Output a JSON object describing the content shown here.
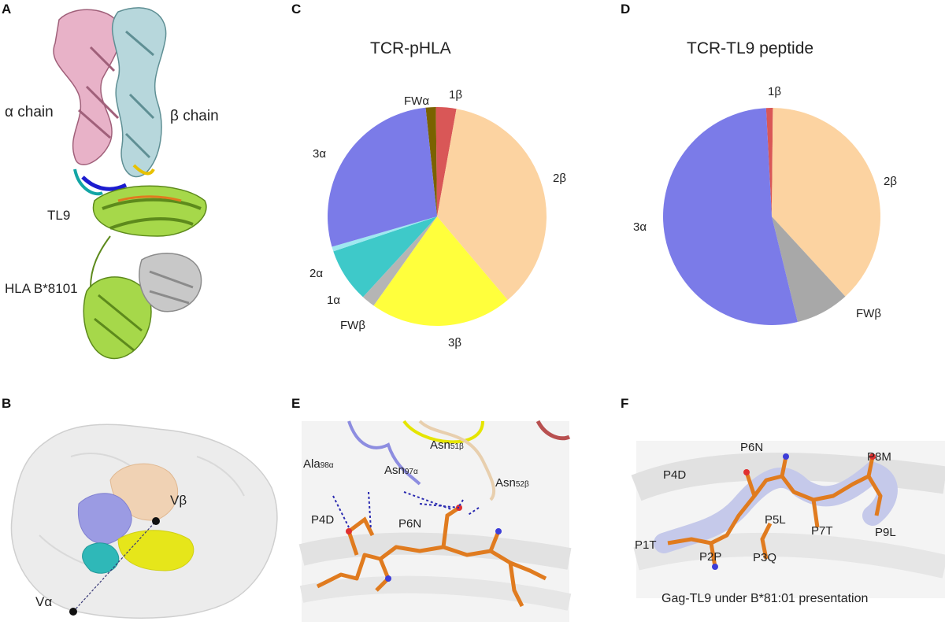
{
  "panels": {
    "a": {
      "letter": "A",
      "alpha_chain": "α chain",
      "beta_chain": "β chain",
      "peptide": "TL9",
      "hla": "HLA B*8101"
    },
    "b": {
      "letter": "B",
      "valpha": "Vα",
      "vbeta": "Vβ"
    },
    "c": {
      "letter": "C"
    },
    "d": {
      "letter": "D"
    },
    "e": {
      "letter": "E",
      "residues": {
        "ala98": "Ala",
        "ala98_sub": "98α",
        "asn97": "Asn",
        "asn97_sub": "97α",
        "asn51": "Asn",
        "asn51_sub": "51β",
        "asn52": "Asn",
        "asn52_sub": "52β",
        "p4d": "P4D",
        "p6n": "P6N"
      }
    },
    "f": {
      "letter": "F",
      "residues": [
        "P1T",
        "P2P",
        "P3Q",
        "P4D",
        "P5L",
        "P6N",
        "P7T",
        "P8M",
        "P9L"
      ],
      "caption": "Gag-TL9 under B*81:01 presentation"
    }
  },
  "colors": {
    "blue": "#7b7be8",
    "peach": "#fcd3a1",
    "yellow": "#ffff3c",
    "teal": "#3ec9c9",
    "gray": "#a8a8a8",
    "red": "#d95757",
    "olive": "#7a6200",
    "orange": "#e07b1f",
    "pink": "#e8b2c8",
    "lightblue": "#b7d7dc",
    "green": "#a6d84a"
  },
  "chart_data": [
    {
      "type": "pie",
      "title": "TCR-pHLA",
      "labels": [
        "FWα",
        "1β",
        "2β",
        "3β",
        "FWβ",
        "1α",
        "2α",
        "3α"
      ],
      "values": [
        1.5,
        3,
        36,
        21,
        2,
        8,
        0.7,
        27.8
      ],
      "colors": [
        "#7a6200",
        "#d95757",
        "#fcd3a1",
        "#ffff3c",
        "#b5b5b5",
        "#3ec9c9",
        "#9fe8f0",
        "#7b7be8"
      ]
    },
    {
      "type": "pie",
      "title": "TCR-TL9 peptide",
      "labels": [
        "1β",
        "2β",
        "FWβ",
        "3α"
      ],
      "values": [
        1,
        38,
        8,
        53
      ],
      "colors": [
        "#d95757",
        "#fcd3a1",
        "#a8a8a8",
        "#7b7be8"
      ]
    }
  ]
}
